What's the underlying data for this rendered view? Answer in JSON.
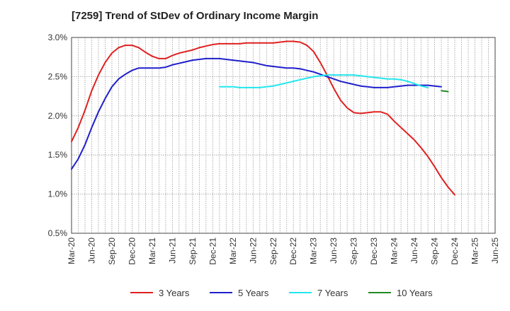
{
  "chart_data": {
    "type": "line",
    "title": "[7259]  Trend of StDev of Ordinary Income Margin",
    "xlabel": "",
    "ylabel": "",
    "ylim": [
      0.005,
      0.03
    ],
    "y_ticks": [
      {
        "value": 0.03,
        "label": "3.0%"
      },
      {
        "value": 0.025,
        "label": "2.5%"
      },
      {
        "value": 0.02,
        "label": "2.0%"
      },
      {
        "value": 0.015,
        "label": "1.5%"
      },
      {
        "value": 0.01,
        "label": "1.0%"
      },
      {
        "value": 0.005,
        "label": "0.5%"
      }
    ],
    "x_ticks": [
      "Mar-20",
      "Jun-20",
      "Sep-20",
      "Dec-20",
      "Mar-21",
      "Jun-21",
      "Sep-21",
      "Dec-21",
      "Mar-22",
      "Jun-22",
      "Sep-22",
      "Dec-22",
      "Mar-23",
      "Jun-23",
      "Sep-23",
      "Dec-23",
      "Mar-24",
      "Jun-24",
      "Sep-24",
      "Dec-24",
      "Mar-25",
      "Jun-25"
    ],
    "grid": true,
    "legend_position": "bottom",
    "series": [
      {
        "name": "3 Years",
        "color": "#e02020",
        "start_index": 0,
        "values": [
          0.0167,
          0.0185,
          0.0207,
          0.0232,
          0.0252,
          0.0268,
          0.028,
          0.0287,
          0.029,
          0.029,
          0.0287,
          0.0281,
          0.0276,
          0.0273,
          0.0273,
          0.0277,
          0.028,
          0.0282,
          0.0284,
          0.0287,
          0.0289,
          0.0291,
          0.0292,
          0.0292,
          0.0292,
          0.0292,
          0.0293,
          0.0293,
          0.0293,
          0.0293,
          0.0293,
          0.0294,
          0.0295,
          0.0295,
          0.0294,
          0.029,
          0.0282,
          0.0268,
          0.0252,
          0.0235,
          0.022,
          0.021,
          0.0204,
          0.0203,
          0.0204,
          0.0205,
          0.0205,
          0.0202,
          0.0193,
          0.0185,
          0.0177,
          0.0169,
          0.0159,
          0.0148,
          0.0135,
          0.0121,
          0.0109,
          0.0099
        ]
      },
      {
        "name": "5 Years",
        "color": "#1f1fcc",
        "start_index": 0,
        "values": [
          0.0132,
          0.0145,
          0.0163,
          0.0185,
          0.0205,
          0.0222,
          0.0237,
          0.0247,
          0.0253,
          0.0258,
          0.0261,
          0.0261,
          0.0261,
          0.0261,
          0.0262,
          0.0265,
          0.0267,
          0.0269,
          0.0271,
          0.0272,
          0.0273,
          0.0273,
          0.0273,
          0.0272,
          0.0271,
          0.027,
          0.0269,
          0.0268,
          0.0266,
          0.0264,
          0.0263,
          0.0262,
          0.0261,
          0.0261,
          0.026,
          0.0258,
          0.0256,
          0.0253,
          0.025,
          0.0247,
          0.0244,
          0.0242,
          0.024,
          0.0238,
          0.0237,
          0.0236,
          0.0236,
          0.0236,
          0.0237,
          0.0238,
          0.0239,
          0.0239,
          0.0239,
          0.0239,
          0.0238,
          0.0237
        ]
      },
      {
        "name": "7 Years",
        "color": "#22e6ee",
        "start_index": 22,
        "values": [
          0.0237,
          0.0237,
          0.0237,
          0.0236,
          0.0236,
          0.0236,
          0.0236,
          0.0237,
          0.0238,
          0.024,
          0.0242,
          0.0244,
          0.0246,
          0.0248,
          0.025,
          0.0251,
          0.0252,
          0.0252,
          0.0252,
          0.0252,
          0.0252,
          0.0251,
          0.025,
          0.0249,
          0.0248,
          0.0247,
          0.0247,
          0.0246,
          0.0244,
          0.0241,
          0.0238,
          0.0236
        ]
      },
      {
        "name": "10 Years",
        "color": "#228b22",
        "start_index": 55,
        "values": [
          0.0232,
          0.0231
        ]
      }
    ]
  }
}
